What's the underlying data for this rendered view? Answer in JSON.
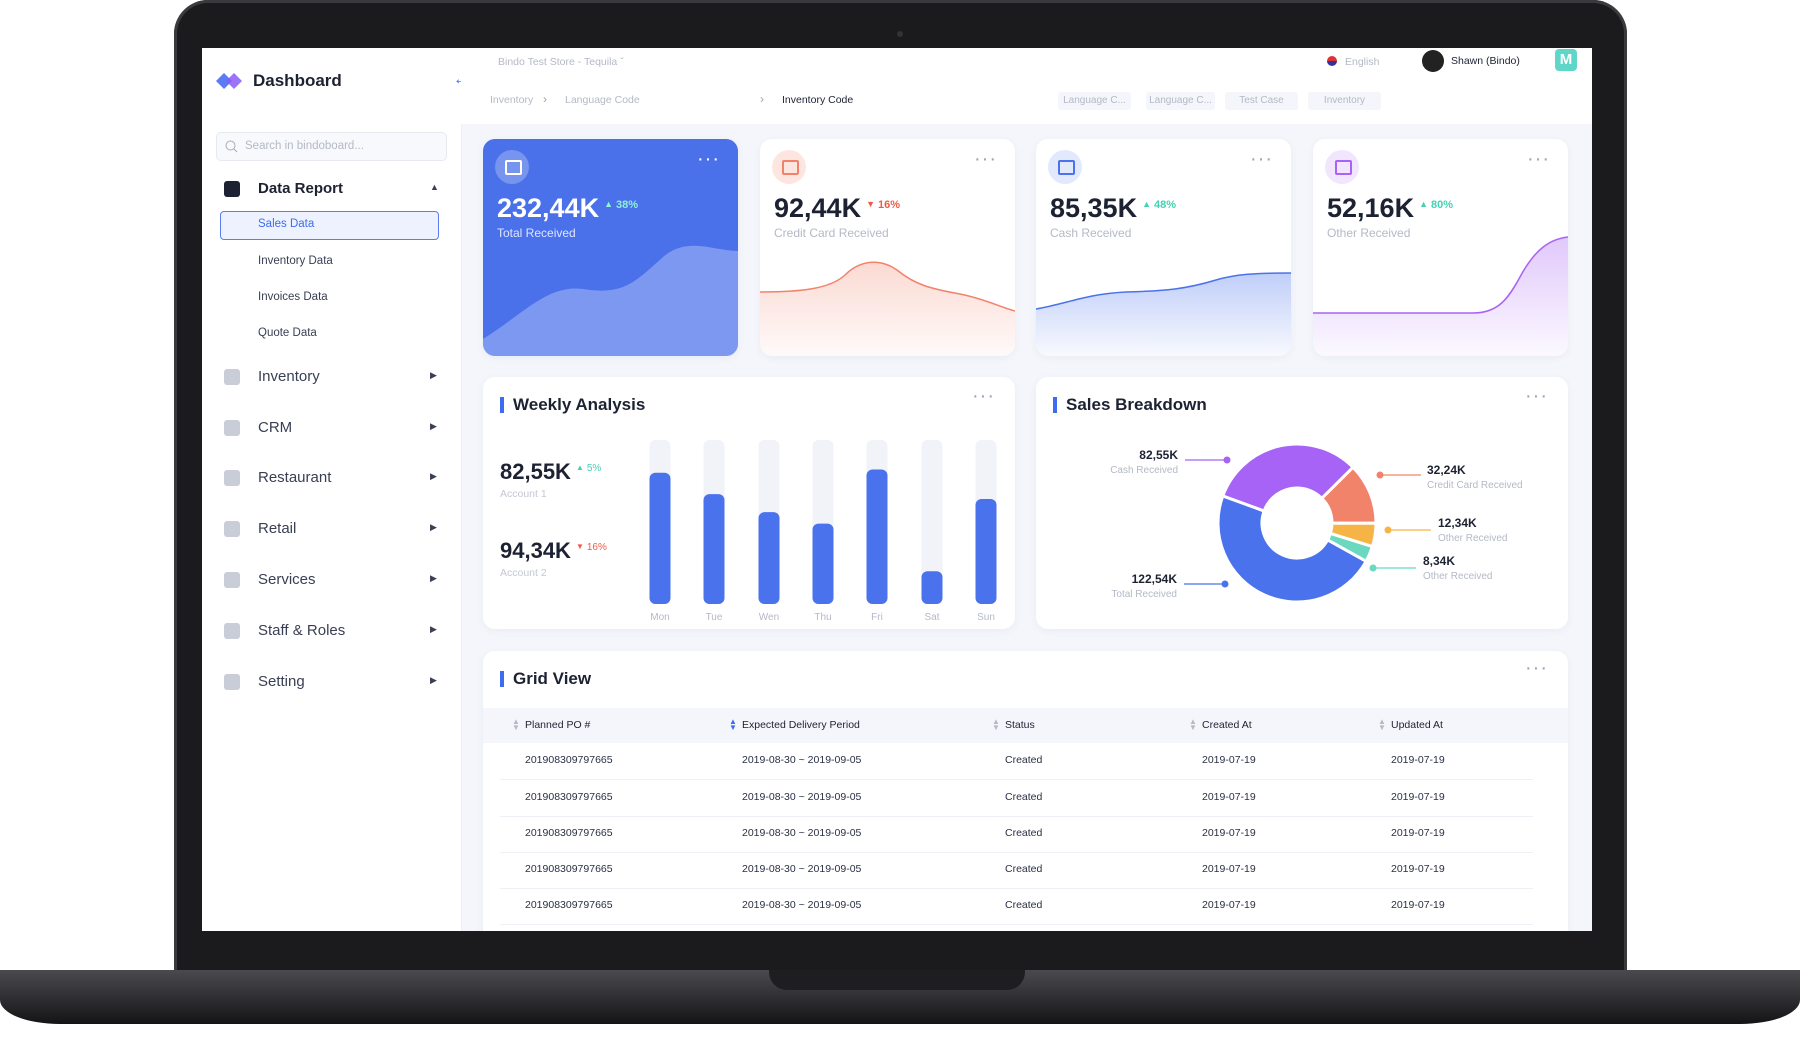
{
  "sidebar": {
    "title": "Dashboard",
    "search_placeholder": "Search in bindoboard...",
    "menu": [
      {
        "label": "Data Report",
        "items": [
          "Sales Data",
          "Inventory Data",
          "Invoices Data",
          "Quote Data"
        ]
      },
      {
        "label": "Inventory"
      },
      {
        "label": "CRM"
      },
      {
        "label": "Restaurant"
      },
      {
        "label": "Retail"
      },
      {
        "label": "Services"
      },
      {
        "label": "Staff & Roles"
      },
      {
        "label": "Setting"
      }
    ]
  },
  "topbar": {
    "store": "Bindo Test Store - Tequila",
    "language": "English",
    "user": "Shawn (Bindo)",
    "app_badge": "M",
    "breadcrumb": [
      "Inventory",
      "Language Code",
      "Inventory Code"
    ],
    "filters": [
      "Language C...",
      "Language C...",
      "Test Case",
      "Inventory"
    ]
  },
  "stats": [
    {
      "value": "232,44K",
      "change": "38%",
      "trend": "up",
      "label": "Total Received"
    },
    {
      "value": "92,44K",
      "change": "16%",
      "trend": "down",
      "label": "Credit Card Received"
    },
    {
      "value": "85,35K",
      "change": "48%",
      "trend": "up",
      "label": "Cash Received"
    },
    {
      "value": "52,16K",
      "change": "80%",
      "trend": "up",
      "label": "Other Received"
    }
  ],
  "weekly_analysis": {
    "title": "Weekly Analysis",
    "accounts": [
      {
        "value": "82,55K",
        "change": "5%",
        "trend": "up",
        "label": "Account 1"
      },
      {
        "value": "94,34K",
        "change": "16%",
        "trend": "down",
        "label": "Account 2"
      }
    ],
    "chart": {
      "type": "bar",
      "categories": [
        "Mon",
        "Tue",
        "Wen",
        "Thu",
        "Fri",
        "Sat",
        "Sun"
      ],
      "values": [
        80,
        67,
        56,
        49,
        82,
        20,
        64
      ],
      "ylim": [
        0,
        100
      ],
      "color": "#4a72ec"
    }
  },
  "sales_breakdown": {
    "title": "Sales Breakdown",
    "chart": {
      "type": "pie",
      "categories": [
        "Cash Received",
        "Credit Card Received",
        "Other Received",
        "Other Received",
        "Total Received"
      ],
      "values": [
        82.55,
        32.24,
        12.34,
        8.34,
        122.54
      ],
      "value_labels": [
        "82,55K",
        "32,24K",
        "12,34K",
        "8,34K",
        "122,54K"
      ],
      "colors": [
        "#a763f5",
        "#f2836b",
        "#f7b446",
        "#6ad9c0",
        "#4a72ec"
      ]
    }
  },
  "grid_view": {
    "title": "Grid View",
    "columns": [
      "Planned PO #",
      "Expected Delivery Period",
      "Status",
      "Created At",
      "Updated At"
    ],
    "rows": [
      [
        "201908309797665",
        "2019-08-30 ~ 2019-09-05",
        "Created",
        "2019-07-19",
        "2019-07-19"
      ],
      [
        "201908309797665",
        "2019-08-30 ~ 2019-09-05",
        "Created",
        "2019-07-19",
        "2019-07-19"
      ],
      [
        "201908309797665",
        "2019-08-30 ~ 2019-09-05",
        "Created",
        "2019-07-19",
        "2019-07-19"
      ],
      [
        "201908309797665",
        "2019-08-30 ~ 2019-09-05",
        "Created",
        "2019-07-19",
        "2019-07-19"
      ],
      [
        "201908309797665",
        "2019-08-30 ~ 2019-09-05",
        "Created",
        "2019-07-19",
        "2019-07-19"
      ]
    ]
  }
}
